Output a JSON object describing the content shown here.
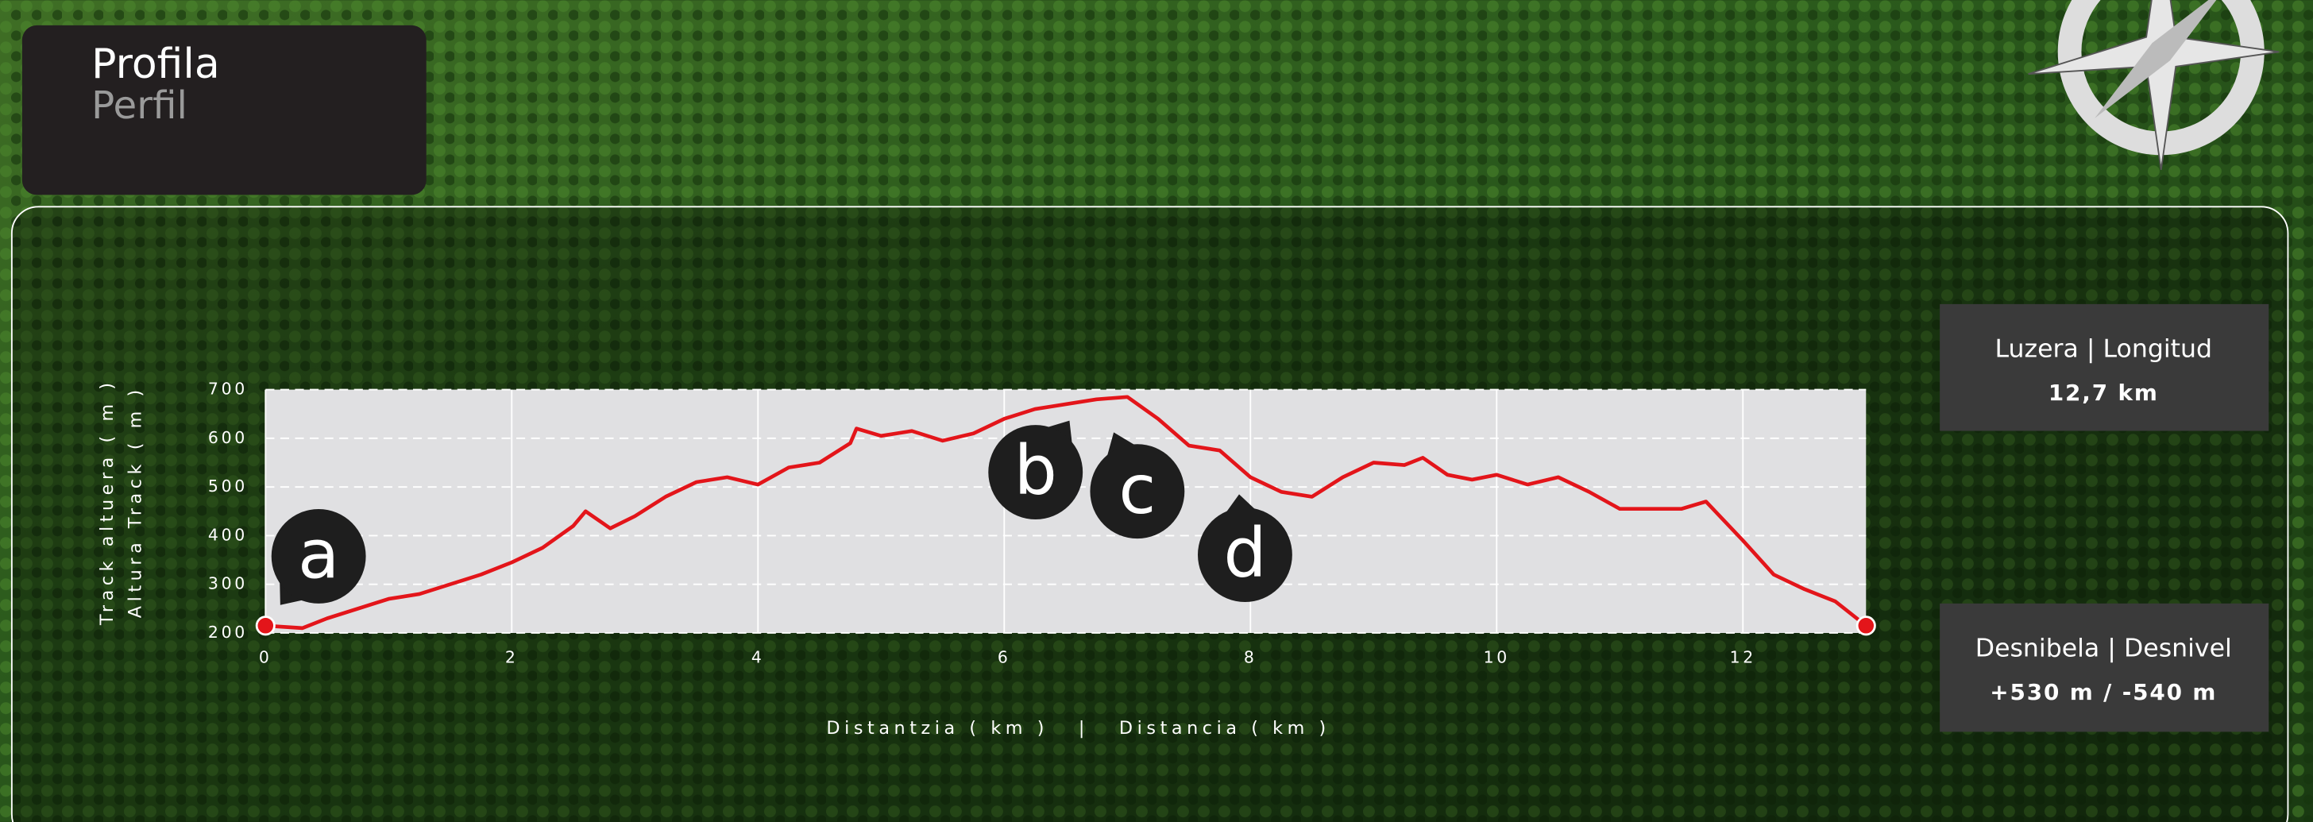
{
  "header": {
    "title": "Profila",
    "subtitle": "Perfil"
  },
  "chart_data": {
    "type": "line",
    "y_label_1": "Track altuera ( m )",
    "y_label_2": "Altura Track ( m )",
    "x_label": "Distantzia ( km )   |   Distancia ( km )",
    "x": [
      0,
      0.3,
      0.5,
      0.75,
      1.0,
      1.25,
      1.5,
      1.75,
      2.0,
      2.25,
      2.5,
      2.6,
      2.8,
      3.0,
      3.25,
      3.5,
      3.75,
      4.0,
      4.25,
      4.5,
      4.75,
      4.8,
      5.0,
      5.25,
      5.5,
      5.75,
      6.0,
      6.25,
      6.5,
      6.75,
      7.0,
      7.25,
      7.5,
      7.75,
      8.0,
      8.25,
      8.5,
      8.75,
      9.0,
      9.25,
      9.4,
      9.6,
      9.8,
      10.0,
      10.25,
      10.5,
      10.75,
      11.0,
      11.25,
      11.5,
      11.7,
      12.0,
      12.25,
      12.5,
      12.75,
      13.0
    ],
    "values": [
      215,
      210,
      230,
      250,
      270,
      280,
      300,
      320,
      345,
      375,
      420,
      450,
      415,
      440,
      480,
      510,
      520,
      505,
      540,
      550,
      590,
      620,
      605,
      615,
      595,
      610,
      640,
      660,
      670,
      680,
      685,
      640,
      585,
      575,
      520,
      490,
      480,
      520,
      550,
      545,
      560,
      525,
      515,
      525,
      505,
      520,
      490,
      455,
      455,
      455,
      470,
      390,
      320,
      290,
      265,
      215
    ],
    "color": "#e3151a",
    "xlim": [
      0,
      13
    ],
    "ylim": [
      200,
      700
    ],
    "xticks": [
      0,
      2,
      4,
      6,
      8,
      10,
      12
    ],
    "yticks": [
      200,
      300,
      400,
      500,
      600,
      700
    ],
    "grid": true,
    "annotations": [
      "a",
      "b",
      "c",
      "d"
    ]
  },
  "info": [
    {
      "label": "Luzera | Longitud",
      "value": "12,7 km"
    },
    {
      "label": "Desnibela | Desnivel",
      "value": "+530 m / -540 m"
    }
  ]
}
